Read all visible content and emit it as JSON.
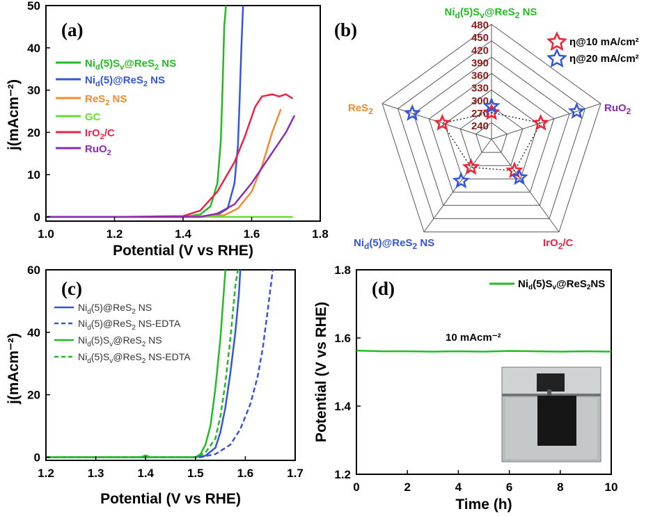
{
  "colors": {
    "NiSv": "#22bb22",
    "Nid": "#3355dd",
    "ReS2": "#f28a30",
    "GC": "#66dd33",
    "IrO2": "#ee2244",
    "RuO2": "#8a2bb8",
    "radar_value": "#8b1a1a"
  },
  "chart_data": [
    {
      "panel": "(a)",
      "type": "line",
      "xlabel": "Potential (V vs RHE)",
      "ylabel": "j(mAcm⁻²)",
      "xlim": [
        1.0,
        1.8
      ],
      "ylim": [
        -1,
        50
      ],
      "xticks": [
        "1.0",
        "1.2",
        "1.4",
        "1.6",
        "1.8"
      ],
      "yticks": [
        "0",
        "10",
        "20",
        "30",
        "40",
        "50"
      ],
      "legend": [
        "Ni_d(5)S_v@ReS2 NS",
        "Ni_d(5)@ReS2 NS",
        "ReS2 NS",
        "GC",
        "IrO2/C",
        "RuO2"
      ],
      "series": [
        {
          "name": "Ni_d(5)S_v@ReS2 NS",
          "color_key": "NiSv",
          "points": [
            [
              1.0,
              0
            ],
            [
              1.4,
              0
            ],
            [
              1.45,
              0.6
            ],
            [
              1.48,
              2.5
            ],
            [
              1.5,
              8
            ],
            [
              1.51,
              18
            ],
            [
              1.515,
              30
            ],
            [
              1.52,
              45
            ],
            [
              1.525,
              50
            ]
          ]
        },
        {
          "name": "Ni_d(5)@ReS2 NS",
          "color_key": "Nid",
          "points": [
            [
              1.0,
              0
            ],
            [
              1.45,
              0
            ],
            [
              1.5,
              0.5
            ],
            [
              1.53,
              2
            ],
            [
              1.55,
              8
            ],
            [
              1.56,
              17
            ],
            [
              1.565,
              28
            ],
            [
              1.57,
              40
            ],
            [
              1.575,
              50
            ]
          ]
        },
        {
          "name": "ReS2 NS",
          "color_key": "ReS2",
          "points": [
            [
              1.4,
              0
            ],
            [
              1.52,
              0.4
            ],
            [
              1.56,
              2
            ],
            [
              1.6,
              6
            ],
            [
              1.63,
              12
            ],
            [
              1.66,
              20
            ],
            [
              1.685,
              25.5
            ]
          ]
        },
        {
          "name": "GC",
          "color_key": "GC",
          "points": [
            [
              1.2,
              0
            ],
            [
              1.72,
              0
            ]
          ]
        },
        {
          "name": "IrO2/C",
          "color_key": "IrO2",
          "points": [
            [
              1.22,
              0
            ],
            [
              1.4,
              0.2
            ],
            [
              1.45,
              1.5
            ],
            [
              1.5,
              6
            ],
            [
              1.55,
              13
            ],
            [
              1.58,
              19
            ],
            [
              1.61,
              26
            ],
            [
              1.63,
              28.5
            ],
            [
              1.66,
              29
            ],
            [
              1.68,
              28.5
            ],
            [
              1.7,
              29
            ],
            [
              1.72,
              28
            ]
          ]
        },
        {
          "name": "RuO2",
          "color_key": "RuO2",
          "points": [
            [
              1.0,
              0
            ],
            [
              1.45,
              0
            ],
            [
              1.5,
              0.8
            ],
            [
              1.55,
              3
            ],
            [
              1.6,
              8
            ],
            [
              1.65,
              14
            ],
            [
              1.7,
              20
            ],
            [
              1.725,
              24
            ]
          ]
        }
      ]
    },
    {
      "panel": "(b)",
      "type": "radar",
      "axes": [
        "Ni_d(5)S_v@ReS2 NS",
        "RuO2",
        "IrO2/C",
        "Ni_d(5)@ReS2 NS",
        "ReS2"
      ],
      "scale": [
        "240",
        "270",
        "300",
        "330",
        "360",
        "390",
        "420",
        "450",
        "480"
      ],
      "range": [
        240,
        480
      ],
      "series": [
        {
          "name": "η@10 mA/cm²",
          "color": "#ee2233",
          "values": [
            270,
            330,
            300,
            290,
            330
          ]
        },
        {
          "name": "η@20 mA/cm²",
          "color": "#3355dd",
          "values": [
            285,
            420,
            320,
            330,
            405
          ]
        }
      ]
    },
    {
      "panel": "(c)",
      "type": "line",
      "xlabel": "Potential (V vs RHE)",
      "ylabel": "j(mAcm⁻²)",
      "xlim": [
        1.2,
        1.7
      ],
      "ylim": [
        -1,
        60
      ],
      "xticks": [
        "1.2",
        "1.3",
        "1.4",
        "1.5",
        "1.6",
        "1.7"
      ],
      "yticks": [
        "0",
        "20",
        "40",
        "60"
      ],
      "legend": [
        "Ni_d(5)@ReS2 NS",
        "Ni_d(5)@ReS2 NS-EDTA",
        "Ni_d(5)S_v@ReS2 NS",
        "Ni_d(5)S_v@ReS2 NS-EDTA"
      ],
      "series": [
        {
          "name": "Ni_d(5)@ReS2 NS",
          "color_key": "Nid",
          "dashed": false,
          "points": [
            [
              1.2,
              0
            ],
            [
              1.5,
              0
            ],
            [
              1.52,
              0.5
            ],
            [
              1.54,
              3
            ],
            [
              1.55,
              8
            ],
            [
              1.56,
              16
            ],
            [
              1.57,
              27
            ],
            [
              1.58,
              40
            ],
            [
              1.587,
              52
            ],
            [
              1.59,
              60
            ]
          ]
        },
        {
          "name": "Ni_d(5)@ReS2 NS-EDTA",
          "color_key": "Nid",
          "dashed": true,
          "points": [
            [
              1.2,
              0
            ],
            [
              1.51,
              0
            ],
            [
              1.54,
              1
            ],
            [
              1.57,
              4
            ],
            [
              1.59,
              9
            ],
            [
              1.61,
              17
            ],
            [
              1.625,
              26
            ],
            [
              1.635,
              35
            ],
            [
              1.645,
              47
            ],
            [
              1.655,
              60
            ]
          ]
        },
        {
          "name": "Ni_d(5)S_v@ReS2 NS",
          "color_key": "NiSv",
          "dashed": false,
          "points": [
            [
              1.2,
              0
            ],
            [
              1.39,
              0
            ],
            [
              1.4,
              0.6
            ],
            [
              1.41,
              0
            ],
            [
              1.5,
              0
            ],
            [
              1.51,
              1
            ],
            [
              1.52,
              4
            ],
            [
              1.53,
              10
            ],
            [
              1.54,
              22
            ],
            [
              1.55,
              38
            ],
            [
              1.56,
              60
            ]
          ]
        },
        {
          "name": "Ni_d(5)S_v@ReS2 NS-EDTA",
          "color_key": "NiSv",
          "dashed": true,
          "points": [
            [
              1.2,
              0
            ],
            [
              1.5,
              0
            ],
            [
              1.52,
              1.5
            ],
            [
              1.54,
              6
            ],
            [
              1.55,
              13
            ],
            [
              1.56,
              24
            ],
            [
              1.57,
              38
            ],
            [
              1.58,
              55
            ],
            [
              1.585,
              60
            ]
          ]
        }
      ]
    },
    {
      "panel": "(d)",
      "type": "line",
      "xlabel": "Time (h)",
      "ylabel": "Potential (V vs RHE)",
      "xlim": [
        0,
        10
      ],
      "ylim": [
        1.2,
        1.8
      ],
      "xticks": [
        "0",
        "2",
        "4",
        "6",
        "8",
        "10"
      ],
      "yticks": [
        "1.2",
        "1.4",
        "1.6",
        "1.8"
      ],
      "legend": [
        "Ni_d(5)S_v@ReS2NS"
      ],
      "annotation": "10 mAcm⁻²",
      "series": [
        {
          "name": "Ni_d(5)S_v@ReS2NS",
          "color_key": "NiSv",
          "points": [
            [
              0,
              1.563
            ],
            [
              1,
              1.561
            ],
            [
              2,
              1.561
            ],
            [
              3,
              1.56
            ],
            [
              4,
              1.561
            ],
            [
              5,
              1.56
            ],
            [
              6,
              1.562
            ],
            [
              7,
              1.561
            ],
            [
              8,
              1.56
            ],
            [
              9,
              1.561
            ],
            [
              10,
              1.56
            ]
          ]
        }
      ]
    }
  ]
}
